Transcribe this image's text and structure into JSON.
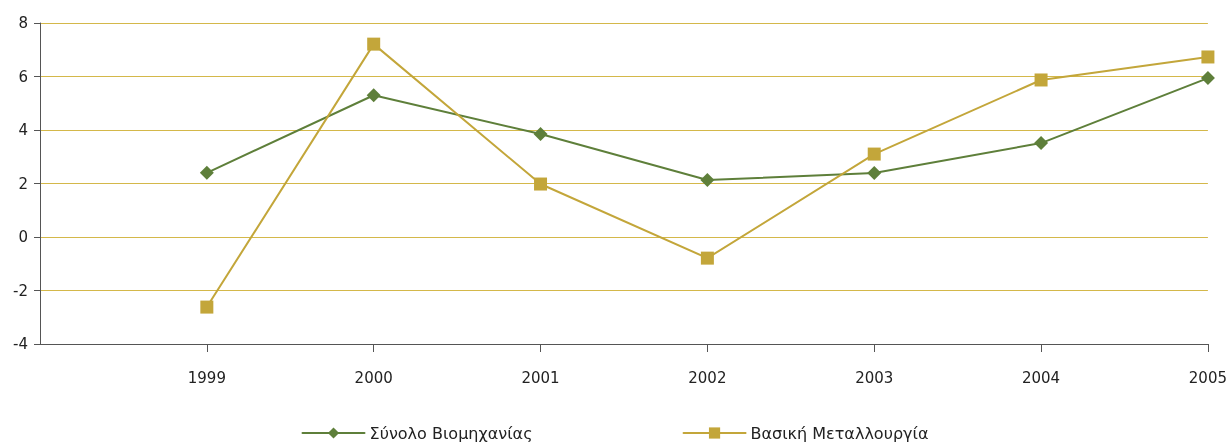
{
  "chart_data": {
    "type": "line",
    "x": [
      1999,
      2000,
      2001,
      2002,
      2003,
      2004,
      2005
    ],
    "xlim": [
      1998,
      2005
    ],
    "xticks": [
      1999,
      2000,
      2001,
      2002,
      2003,
      2004,
      2005
    ],
    "ylim": [
      -4,
      8
    ],
    "yticks": [
      -4,
      -2,
      0,
      2,
      4,
      6,
      8
    ],
    "series": [
      {
        "name": "Σύνολο Βιομηχανίας",
        "color": "#5e7f3a",
        "marker": "diamond",
        "values": [
          2.4,
          5.3,
          3.85,
          2.13,
          2.39,
          3.51,
          5.94
        ]
      },
      {
        "name": "Βασική Μεταλλουργία",
        "color": "#c3a63a",
        "marker": "square",
        "values": [
          -2.62,
          7.21,
          1.98,
          -0.79,
          3.1,
          5.87,
          6.73
        ]
      }
    ],
    "grid": "y",
    "legend": "bottom",
    "line_style": "solid"
  }
}
